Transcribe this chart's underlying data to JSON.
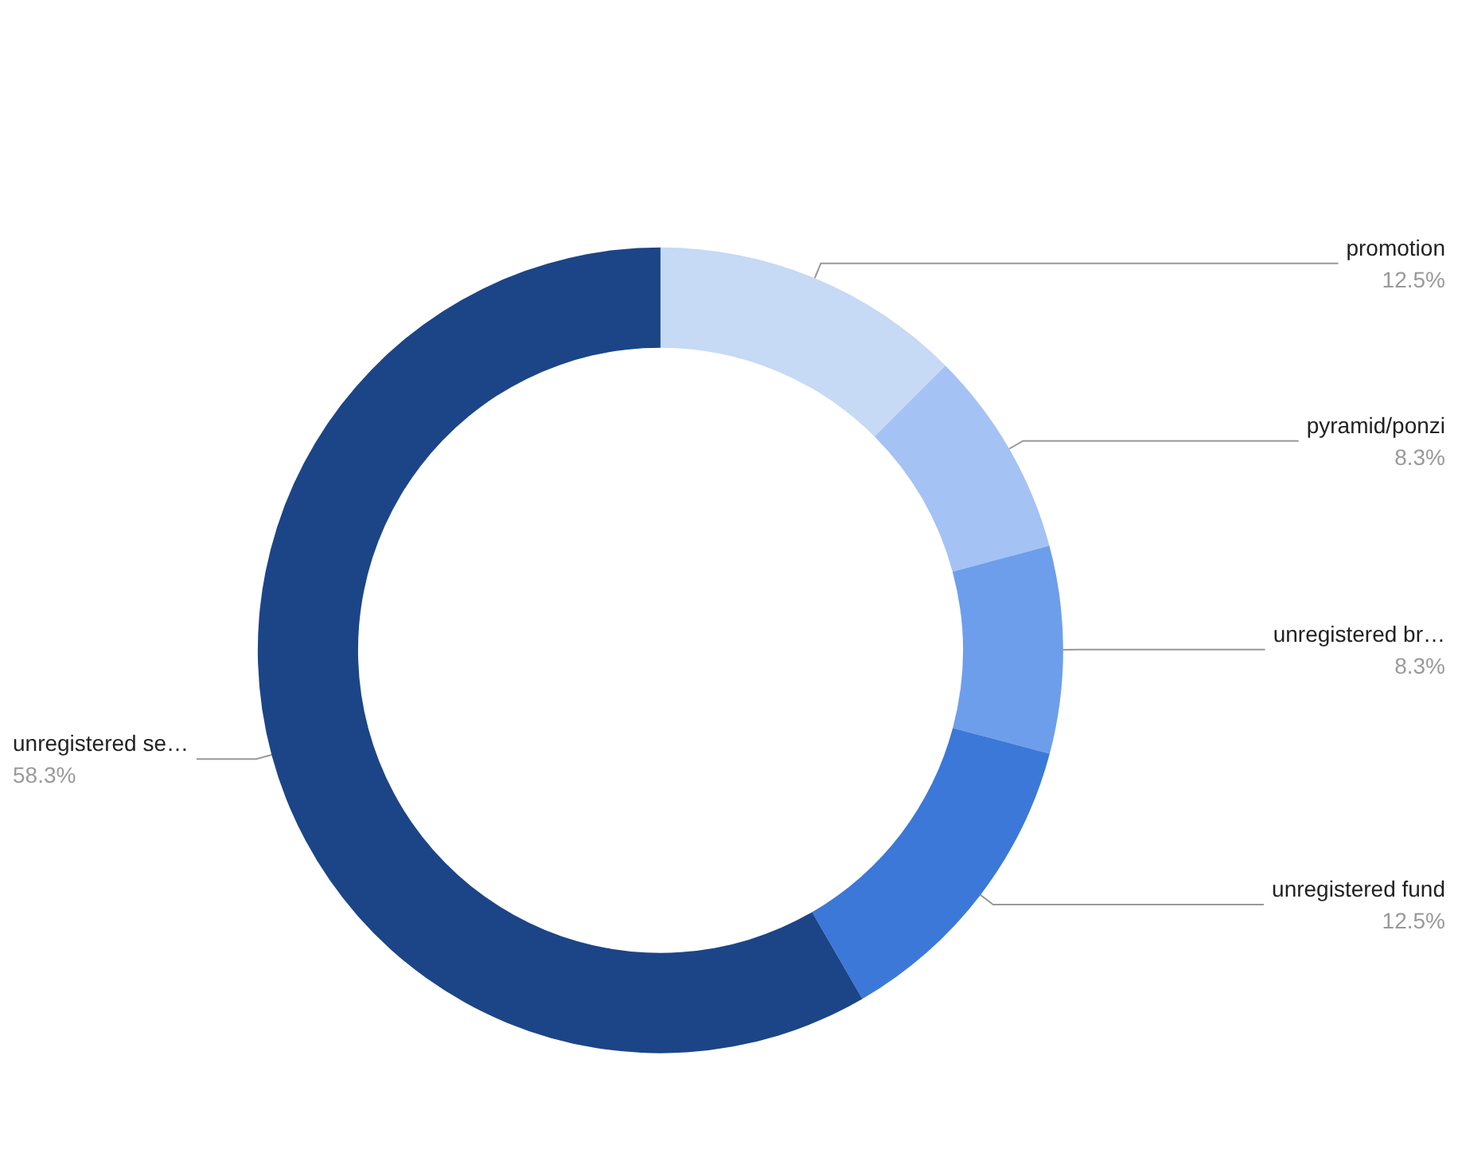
{
  "chart_data": {
    "type": "donut",
    "categories": [
      "promotion",
      "pyramid/ponzi",
      "unregistered br…",
      "unregistered fund",
      "unregistered se…"
    ],
    "values": [
      12.5,
      8.3,
      8.3,
      12.5,
      58.3
    ],
    "value_labels": [
      "12.5%",
      "8.3%",
      "8.3%",
      "12.5%",
      "58.3%"
    ],
    "colors": [
      "#c6d9f5",
      "#a4c2f4",
      "#6d9eeb",
      "#3c78d8",
      "#1c4587"
    ],
    "legend": false
  }
}
